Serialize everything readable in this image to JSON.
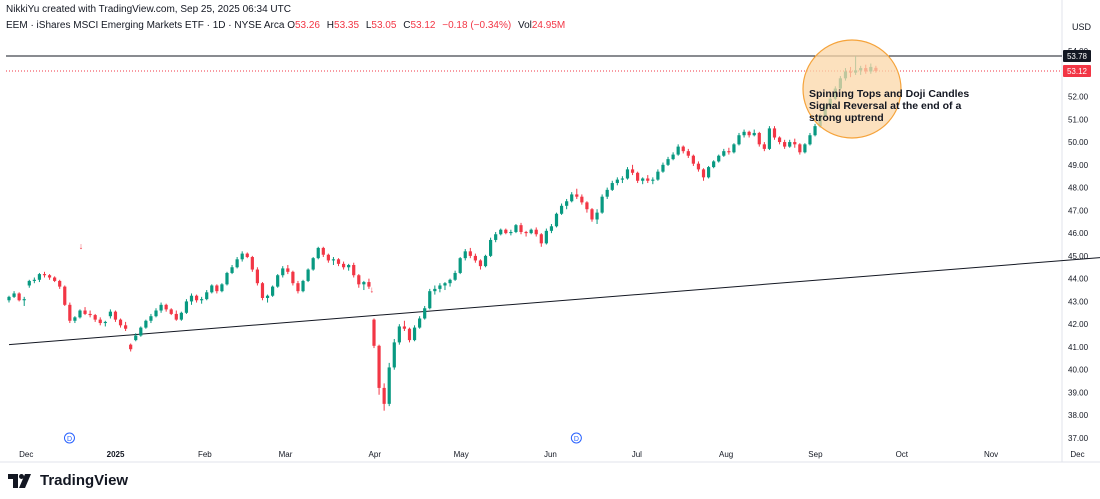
{
  "attribution": "NikkiYu created with TradingView.com, Sep 25, 2025 06:34 UTC",
  "legend": {
    "symbol": "EEM · iShares MSCI Emerging Markets ETF · 1D · NYSE Arca",
    "o_label": "O",
    "o_value": "53.26",
    "h_label": "H",
    "h_value": "53.35",
    "l_label": "L",
    "l_value": "53.05",
    "c_label": "C",
    "c_value": "53.12",
    "change": "−0.18 (−0.34%)",
    "vol_label": "Vol",
    "vol_value": "24.95M"
  },
  "currency": "USD",
  "brand": "TradingView",
  "colors": {
    "up": "#089981",
    "down": "#f23645",
    "annotation_fill": "#fbd7a8",
    "annotation_stroke": "#f5a33b",
    "line": "#131722"
  },
  "chart_data": {
    "type": "candlestick",
    "y_axis": {
      "min": 37.0,
      "max": 54.0,
      "ticks": [
        "37.00",
        "38.00",
        "39.00",
        "40.00",
        "41.00",
        "42.00",
        "43.00",
        "44.00",
        "45.00",
        "46.00",
        "47.00",
        "48.00",
        "49.00",
        "50.00",
        "51.00",
        "52.00",
        "53.00",
        "54.00"
      ]
    },
    "x_axis_labels": [
      "Dec",
      "2025",
      "Feb",
      "Mar",
      "Apr",
      "May",
      "Jun",
      "Jul",
      "Aug",
      "Sep",
      "Oct",
      "Nov",
      "Dec"
    ],
    "price_labels": {
      "high_marker": "53.78",
      "last_price": "53.12"
    },
    "annotation": {
      "lines": [
        "Spinning Tops and Doji Candles",
        "Signal Reversal at the end of a",
        "strong uptrend"
      ]
    },
    "trendline": {
      "start": {
        "date": "2024-11-25",
        "price": 41.1
      },
      "end": {
        "date": "2026-01-05",
        "price": 45.2
      }
    },
    "horizontal_line": {
      "price": 53.78
    },
    "event_markers": [
      "D",
      "D"
    ],
    "candles": [
      [
        43.05,
        43.25,
        42.95,
        43.2
      ],
      [
        43.2,
        43.45,
        43.15,
        43.35
      ],
      [
        43.35,
        43.4,
        43.0,
        43.05
      ],
      [
        43.05,
        43.2,
        42.8,
        43.1
      ],
      [
        43.7,
        43.95,
        43.6,
        43.9
      ],
      [
        43.9,
        44.05,
        43.8,
        43.95
      ],
      [
        43.95,
        44.25,
        43.85,
        44.2
      ],
      [
        44.2,
        44.3,
        44.05,
        44.15
      ],
      [
        44.15,
        44.2,
        43.95,
        44.05
      ],
      [
        44.05,
        44.1,
        43.85,
        43.9
      ],
      [
        43.9,
        43.95,
        43.55,
        43.65
      ],
      [
        43.65,
        43.7,
        42.8,
        42.85
      ],
      [
        42.85,
        42.95,
        42.05,
        42.15
      ],
      [
        42.15,
        42.35,
        42.05,
        42.3
      ],
      [
        42.3,
        42.65,
        42.25,
        42.6
      ],
      [
        42.6,
        42.75,
        42.4,
        42.45
      ],
      [
        42.45,
        42.6,
        42.3,
        42.4
      ],
      [
        42.4,
        42.45,
        42.1,
        42.2
      ],
      [
        42.2,
        42.3,
        41.95,
        42.05
      ],
      [
        42.05,
        42.15,
        41.9,
        42.1
      ],
      [
        42.35,
        42.65,
        42.25,
        42.55
      ],
      [
        42.55,
        42.6,
        42.1,
        42.2
      ],
      [
        42.2,
        42.25,
        41.85,
        41.95
      ],
      [
        41.95,
        42.1,
        41.7,
        41.8
      ],
      [
        41.1,
        41.15,
        40.8,
        40.9
      ],
      [
        41.3,
        41.6,
        41.25,
        41.5
      ],
      [
        41.5,
        41.9,
        41.45,
        41.85
      ],
      [
        41.85,
        42.2,
        41.8,
        42.15
      ],
      [
        42.15,
        42.45,
        42.05,
        42.35
      ],
      [
        42.35,
        42.7,
        42.3,
        42.6
      ],
      [
        42.6,
        42.95,
        42.5,
        42.85
      ],
      [
        42.85,
        42.9,
        42.55,
        42.65
      ],
      [
        42.65,
        42.7,
        42.4,
        42.45
      ],
      [
        42.45,
        42.6,
        42.15,
        42.2
      ],
      [
        42.2,
        42.55,
        42.15,
        42.5
      ],
      [
        42.5,
        43.1,
        42.45,
        43.0
      ],
      [
        43.0,
        43.35,
        42.85,
        43.25
      ],
      [
        43.25,
        43.3,
        42.95,
        43.05
      ],
      [
        43.05,
        43.2,
        42.9,
        43.1
      ],
      [
        43.1,
        43.5,
        43.05,
        43.4
      ],
      [
        43.4,
        43.75,
        43.35,
        43.7
      ],
      [
        43.7,
        43.75,
        43.35,
        43.45
      ],
      [
        43.45,
        43.8,
        43.4,
        43.75
      ],
      [
        43.75,
        44.3,
        43.7,
        44.25
      ],
      [
        44.25,
        44.6,
        44.2,
        44.5
      ],
      [
        44.5,
        44.95,
        44.45,
        44.85
      ],
      [
        44.85,
        45.2,
        44.75,
        45.1
      ],
      [
        45.1,
        45.15,
        44.9,
        44.95
      ],
      [
        44.95,
        45.0,
        44.3,
        44.4
      ],
      [
        44.4,
        44.5,
        43.7,
        43.8
      ],
      [
        43.8,
        43.85,
        43.05,
        43.15
      ],
      [
        43.15,
        43.3,
        42.95,
        43.25
      ],
      [
        43.25,
        43.7,
        43.2,
        43.65
      ],
      [
        43.65,
        44.2,
        43.6,
        44.15
      ],
      [
        44.15,
        44.55,
        44.05,
        44.45
      ],
      [
        44.45,
        44.6,
        44.2,
        44.3
      ],
      [
        44.3,
        44.35,
        43.7,
        43.8
      ],
      [
        43.8,
        43.9,
        43.35,
        43.45
      ],
      [
        43.45,
        43.95,
        43.4,
        43.9
      ],
      [
        43.9,
        44.45,
        43.85,
        44.4
      ],
      [
        44.4,
        44.95,
        44.35,
        44.9
      ],
      [
        44.9,
        45.4,
        44.85,
        45.35
      ],
      [
        45.35,
        45.4,
        44.95,
        45.05
      ],
      [
        45.05,
        45.1,
        44.7,
        44.8
      ],
      [
        44.8,
        44.95,
        44.6,
        44.85
      ],
      [
        44.85,
        44.9,
        44.55,
        44.65
      ],
      [
        44.65,
        44.75,
        44.4,
        44.5
      ],
      [
        44.5,
        44.65,
        44.35,
        44.6
      ],
      [
        44.6,
        44.7,
        44.05,
        44.15
      ],
      [
        44.15,
        44.2,
        43.6,
        43.75
      ],
      [
        43.75,
        43.9,
        43.5,
        43.85
      ],
      [
        43.85,
        44.0,
        43.55,
        43.65
      ],
      [
        42.2,
        42.25,
        40.95,
        41.05
      ],
      [
        41.05,
        41.1,
        38.9,
        39.2
      ],
      [
        39.2,
        39.4,
        38.2,
        38.5
      ],
      [
        38.5,
        40.3,
        38.4,
        40.1
      ],
      [
        40.1,
        41.35,
        40.0,
        41.2
      ],
      [
        41.2,
        42.0,
        41.1,
        41.9
      ],
      [
        41.9,
        42.15,
        41.7,
        41.8
      ],
      [
        41.8,
        41.85,
        41.2,
        41.3
      ],
      [
        41.3,
        41.95,
        41.25,
        41.85
      ],
      [
        41.85,
        42.35,
        41.8,
        42.25
      ],
      [
        42.25,
        42.8,
        42.2,
        42.7
      ],
      [
        42.7,
        43.55,
        42.65,
        43.45
      ],
      [
        43.45,
        43.7,
        43.3,
        43.55
      ],
      [
        43.55,
        43.8,
        43.4,
        43.7
      ],
      [
        43.7,
        43.85,
        43.5,
        43.8
      ],
      [
        43.8,
        44.0,
        43.65,
        43.95
      ],
      [
        43.95,
        44.35,
        43.9,
        44.25
      ],
      [
        44.25,
        44.95,
        44.2,
        44.9
      ],
      [
        44.9,
        45.3,
        44.8,
        45.2
      ],
      [
        45.2,
        45.35,
        44.9,
        45.0
      ],
      [
        45.0,
        45.1,
        44.7,
        44.8
      ],
      [
        44.8,
        44.85,
        44.4,
        44.55
      ],
      [
        44.55,
        45.05,
        44.5,
        45.0
      ],
      [
        45.0,
        45.8,
        44.95,
        45.7
      ],
      [
        45.7,
        46.05,
        45.6,
        45.95
      ],
      [
        45.95,
        46.2,
        45.9,
        46.15
      ],
      [
        46.15,
        46.2,
        45.95,
        46.0
      ],
      [
        46.0,
        46.15,
        45.9,
        46.05
      ],
      [
        46.05,
        46.4,
        46.0,
        46.35
      ],
      [
        46.35,
        46.45,
        45.95,
        46.05
      ],
      [
        46.05,
        46.1,
        45.85,
        46.0
      ],
      [
        46.0,
        46.2,
        45.95,
        46.15
      ],
      [
        46.15,
        46.25,
        45.85,
        45.95
      ],
      [
        45.95,
        46.0,
        45.4,
        45.55
      ],
      [
        45.55,
        46.2,
        45.5,
        46.1
      ],
      [
        46.1,
        46.4,
        46.0,
        46.3
      ],
      [
        46.3,
        46.9,
        46.25,
        46.85
      ],
      [
        46.85,
        47.3,
        46.8,
        47.2
      ],
      [
        47.2,
        47.5,
        47.05,
        47.4
      ],
      [
        47.4,
        47.8,
        47.35,
        47.7
      ],
      [
        47.7,
        47.95,
        47.5,
        47.6
      ],
      [
        47.6,
        47.7,
        47.25,
        47.35
      ],
      [
        47.35,
        47.4,
        46.9,
        47.05
      ],
      [
        47.05,
        47.1,
        46.5,
        46.6
      ],
      [
        46.6,
        47.05,
        46.4,
        46.9
      ],
      [
        46.9,
        47.7,
        46.85,
        47.6
      ],
      [
        47.6,
        48.0,
        47.5,
        47.9
      ],
      [
        47.9,
        48.3,
        47.85,
        48.2
      ],
      [
        48.2,
        48.45,
        48.1,
        48.35
      ],
      [
        48.35,
        48.5,
        48.2,
        48.4
      ],
      [
        48.4,
        48.9,
        48.35,
        48.8
      ],
      [
        48.8,
        49.0,
        48.55,
        48.65
      ],
      [
        48.65,
        48.7,
        48.2,
        48.3
      ],
      [
        48.3,
        48.45,
        48.15,
        48.4
      ],
      [
        48.4,
        48.55,
        48.2,
        48.3
      ],
      [
        48.3,
        48.45,
        48.15,
        48.35
      ],
      [
        48.35,
        48.8,
        48.3,
        48.7
      ],
      [
        48.7,
        49.1,
        48.65,
        49.0
      ],
      [
        49.0,
        49.35,
        48.95,
        49.25
      ],
      [
        49.25,
        49.55,
        49.2,
        49.45
      ],
      [
        49.45,
        49.9,
        49.4,
        49.8
      ],
      [
        49.8,
        49.85,
        49.5,
        49.6
      ],
      [
        49.6,
        49.7,
        49.3,
        49.4
      ],
      [
        49.4,
        49.45,
        48.95,
        49.05
      ],
      [
        49.05,
        49.15,
        48.7,
        48.8
      ],
      [
        48.8,
        48.85,
        48.3,
        48.45
      ],
      [
        48.45,
        48.95,
        48.4,
        48.9
      ],
      [
        48.9,
        49.2,
        48.85,
        49.15
      ],
      [
        49.15,
        49.45,
        49.1,
        49.4
      ],
      [
        49.4,
        49.7,
        49.35,
        49.6
      ],
      [
        49.6,
        49.75,
        49.45,
        49.55
      ],
      [
        49.55,
        49.95,
        49.5,
        49.9
      ],
      [
        49.9,
        50.4,
        49.85,
        50.3
      ],
      [
        50.3,
        50.55,
        50.2,
        50.45
      ],
      [
        50.45,
        50.5,
        50.2,
        50.3
      ],
      [
        50.3,
        50.55,
        50.25,
        50.4
      ],
      [
        50.4,
        50.45,
        49.8,
        49.9
      ],
      [
        49.9,
        50.0,
        49.6,
        49.7
      ],
      [
        49.7,
        50.7,
        49.65,
        50.6
      ],
      [
        50.6,
        50.7,
        50.1,
        50.2
      ],
      [
        50.2,
        50.25,
        49.9,
        50.0
      ],
      [
        50.0,
        50.1,
        49.7,
        49.8
      ],
      [
        49.8,
        50.1,
        49.75,
        50.0
      ],
      [
        50.0,
        50.15,
        49.75,
        49.9
      ],
      [
        49.9,
        49.95,
        49.45,
        49.55
      ],
      [
        49.55,
        49.95,
        49.5,
        49.9
      ],
      [
        49.9,
        50.4,
        49.85,
        50.3
      ],
      [
        50.3,
        50.8,
        50.25,
        50.7
      ],
      [
        50.7,
        51.25,
        50.65,
        51.15
      ],
      [
        51.15,
        51.65,
        51.1,
        51.55
      ],
      [
        51.55,
        52.0,
        51.5,
        51.9
      ],
      [
        51.9,
        52.45,
        51.85,
        52.35
      ],
      [
        52.35,
        52.9,
        52.3,
        52.8
      ],
      [
        52.8,
        53.25,
        52.7,
        53.1
      ],
      [
        53.1,
        53.3,
        52.85,
        53.05
      ],
      [
        53.05,
        53.78,
        52.95,
        53.15
      ],
      [
        53.15,
        53.35,
        52.95,
        53.25
      ],
      [
        53.25,
        53.4,
        53.0,
        53.1
      ],
      [
        53.1,
        53.45,
        53.0,
        53.3
      ],
      [
        53.26,
        53.35,
        53.05,
        53.12
      ]
    ]
  }
}
